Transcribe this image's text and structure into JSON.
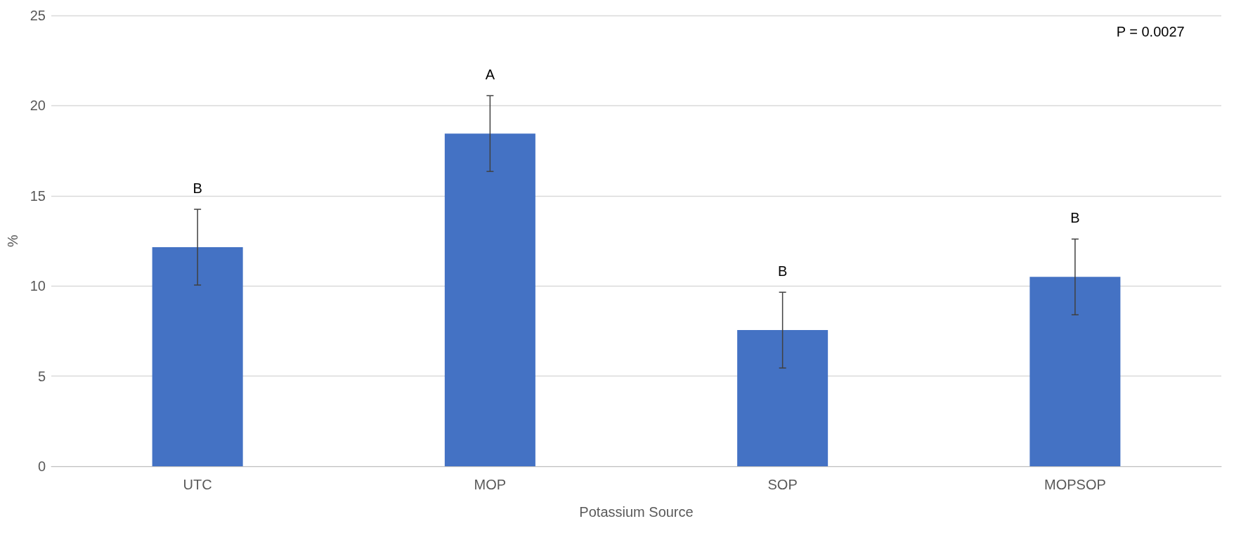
{
  "chart_data": {
    "type": "bar",
    "xlabel": "Potassium Source",
    "ylabel": "%",
    "categories": [
      "UTC",
      "MOP",
      "SOP",
      "MOPSOP"
    ],
    "values": [
      12.15,
      18.45,
      7.55,
      10.5
    ],
    "errors": [
      2.1,
      2.1,
      2.1,
      2.1
    ],
    "color": "#4472c4",
    "ylim": [
      0,
      25
    ],
    "yticks": [
      0,
      5,
      10,
      15,
      20,
      25
    ],
    "grid": "y",
    "annotations": [
      "B",
      "A",
      "B",
      "B",
      "P = 0.0027"
    ]
  }
}
